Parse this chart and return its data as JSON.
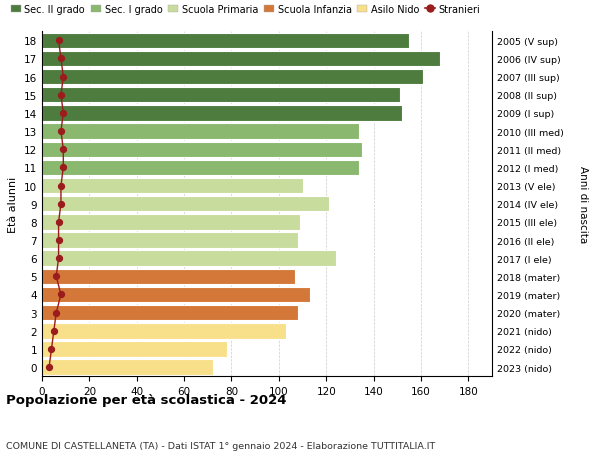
{
  "ages": [
    0,
    1,
    2,
    3,
    4,
    5,
    6,
    7,
    8,
    9,
    10,
    11,
    12,
    13,
    14,
    15,
    16,
    17,
    18
  ],
  "values": [
    72,
    78,
    103,
    108,
    113,
    107,
    124,
    108,
    109,
    121,
    110,
    134,
    135,
    134,
    152,
    151,
    161,
    168,
    155
  ],
  "right_labels": [
    "2023 (nido)",
    "2022 (nido)",
    "2021 (nido)",
    "2020 (mater)",
    "2019 (mater)",
    "2018 (mater)",
    "2017 (I ele)",
    "2016 (II ele)",
    "2015 (III ele)",
    "2014 (IV ele)",
    "2013 (V ele)",
    "2012 (I med)",
    "2011 (II med)",
    "2010 (III med)",
    "2009 (I sup)",
    "2008 (II sup)",
    "2007 (III sup)",
    "2006 (IV sup)",
    "2005 (V sup)"
  ],
  "bar_colors": [
    "#f8e08a",
    "#f8e08a",
    "#f8e08a",
    "#d4783a",
    "#d4783a",
    "#d4783a",
    "#c8dc9e",
    "#c8dc9e",
    "#c8dc9e",
    "#c8dc9e",
    "#c8dc9e",
    "#8ab86e",
    "#8ab86e",
    "#8ab86e",
    "#4d7c3e",
    "#4d7c3e",
    "#4d7c3e",
    "#4d7c3e",
    "#4d7c3e"
  ],
  "legend_labels": [
    "Sec. II grado",
    "Sec. I grado",
    "Scuola Primaria",
    "Scuola Infanzia",
    "Asilo Nido",
    "Stranieri"
  ],
  "legend_colors": [
    "#4d7c3e",
    "#8ab86e",
    "#c8dc9e",
    "#d4783a",
    "#f8e08a",
    "#9b1c1c"
  ],
  "ylabel": "Età alunni",
  "xlabel_right": "Anni di nascita",
  "xlim": [
    0,
    190
  ],
  "xticks": [
    0,
    20,
    40,
    60,
    80,
    100,
    120,
    140,
    160,
    180
  ],
  "title": "Popolazione per età scolastica - 2024",
  "subtitle": "COMUNE DI CASTELLANETA (TA) - Dati ISTAT 1° gennaio 2024 - Elaborazione TUTTITALIA.IT",
  "stranieri_color": "#9b1c1c",
  "stranieri_x": [
    3,
    4,
    5,
    6,
    8,
    6,
    7,
    7,
    7,
    8,
    8,
    9,
    9,
    8,
    9,
    8,
    9,
    8,
    7
  ],
  "bg_color": "#ffffff",
  "grid_color": "#cccccc"
}
